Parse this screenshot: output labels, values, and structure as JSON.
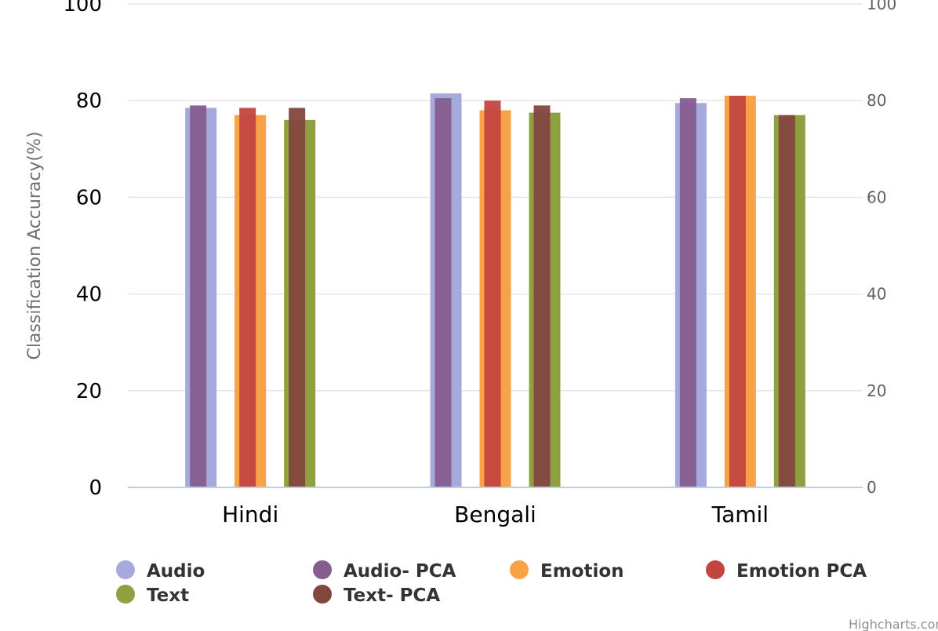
{
  "chart_data": {
    "type": "bar",
    "categories": [
      "Hindi",
      "Bengali",
      "Tamil"
    ],
    "ylabel": "Classification Accuracy(%)",
    "ylabel_right": "",
    "ylim": [
      0,
      100
    ],
    "yticks": [
      "0",
      "20",
      "40",
      "60",
      "80",
      "100"
    ],
    "grid": true,
    "legend_position": "bottom",
    "series": [
      {
        "name": "Audio",
        "color": "#a6a9db",
        "values": [
          78.5,
          81.5,
          79.5
        ]
      },
      {
        "name": "Audio- PCA",
        "color": "#855d8f",
        "values": [
          79,
          80.5,
          80.5
        ]
      },
      {
        "name": "Emotion",
        "color": "#f8a145",
        "values": [
          77,
          78,
          81
        ]
      },
      {
        "name": "Emotion PCA",
        "color": "#c2463f",
        "values": [
          78.5,
          80,
          81
        ]
      },
      {
        "name": "Text",
        "color": "#8fa040",
        "values": [
          76,
          77.5,
          77
        ]
      },
      {
        "name": "Text- PCA",
        "color": "#854640",
        "values": [
          78.5,
          79,
          77
        ]
      }
    ],
    "credits": "Highcharts.com"
  }
}
